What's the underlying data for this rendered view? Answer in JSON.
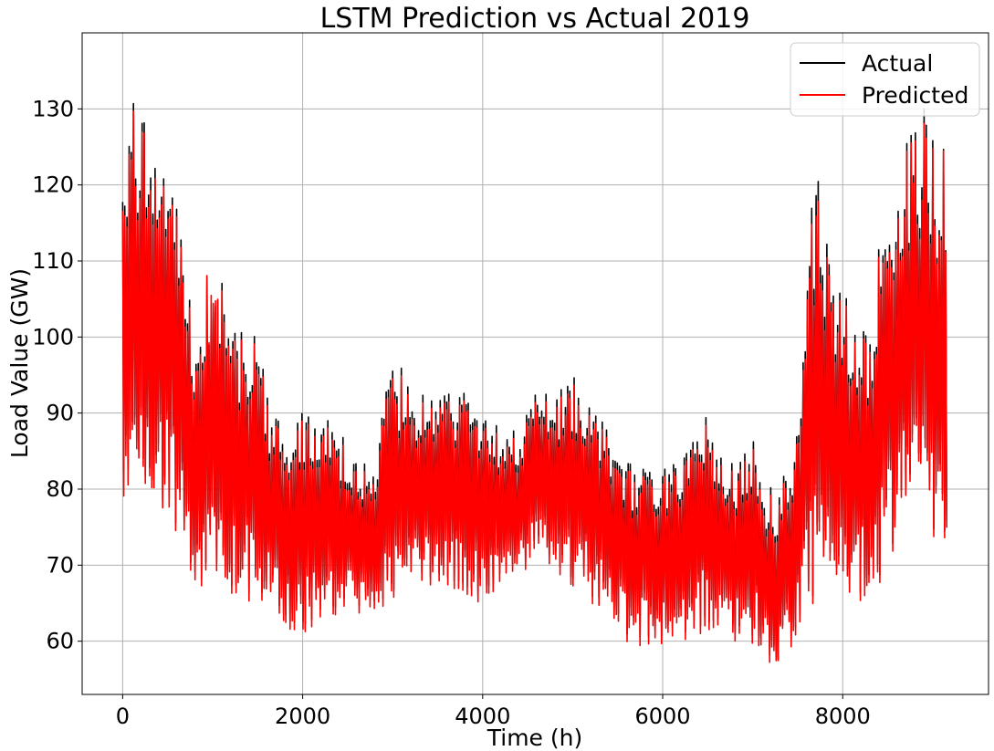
{
  "chart_data": {
    "type": "line",
    "title": "LSTM Prediction vs Actual 2019",
    "xlabel": "Time (h)",
    "ylabel": "Load Value (GW)",
    "xlim": [
      -450,
      9620
    ],
    "ylim": [
      53,
      140
    ],
    "xticks": [
      0,
      2000,
      4000,
      6000,
      8000
    ],
    "yticks": [
      60,
      70,
      80,
      90,
      100,
      110,
      120,
      130
    ],
    "grid": true,
    "legend_position": "top-right",
    "series": [
      {
        "name": "Actual",
        "color": "#000000",
        "x": [
          0,
          100,
          200,
          300,
          400,
          500,
          600,
          700,
          800,
          900,
          1000,
          1100,
          1200,
          1300,
          1400,
          1500,
          1600,
          1700,
          1800,
          1900,
          2000,
          2100,
          2200,
          2300,
          2400,
          2500,
          2600,
          2700,
          2800,
          2900,
          3000,
          3100,
          3200,
          3300,
          3400,
          3500,
          3600,
          3700,
          3800,
          3900,
          4000,
          4100,
          4200,
          4300,
          4400,
          4500,
          4600,
          4700,
          4800,
          4900,
          5000,
          5100,
          5200,
          5300,
          5400,
          5500,
          5600,
          5700,
          5800,
          5900,
          6000,
          6100,
          6200,
          6300,
          6400,
          6500,
          6600,
          6700,
          6800,
          6900,
          7000,
          7100,
          7200,
          7300,
          7400,
          7500,
          7600,
          7700,
          7800,
          7900,
          8000,
          8100,
          8200,
          8300,
          8400,
          8500,
          8600,
          8700,
          8800,
          8900,
          9000,
          9150
        ],
        "high": [
          120,
          132,
          127,
          135,
          122,
          126,
          118,
          109,
          101,
          105,
          114,
          108,
          104,
          101,
          102,
          99,
          95,
          90,
          88,
          89,
          91,
          91,
          90,
          89,
          88,
          87,
          86,
          84,
          84,
          91,
          98,
          96,
          94,
          93,
          92,
          93,
          95,
          94,
          93,
          91,
          90,
          89,
          88,
          89,
          89,
          90,
          96,
          95,
          94,
          93,
          96,
          94,
          92,
          91,
          88,
          86,
          84,
          83,
          83,
          83,
          84,
          84,
          85,
          86,
          87,
          94,
          87,
          86,
          84,
          85,
          89,
          82,
          81,
          80,
          87,
          88,
          105,
          127,
          114,
          108,
          107,
          104,
          103,
          102,
          112,
          119,
          118,
          126,
          129,
          131,
          126,
          126
        ],
        "low": [
          79,
          81,
          80,
          79,
          78,
          78,
          75,
          71,
          69,
          68,
          69,
          68,
          67,
          66,
          66,
          65,
          64,
          63,
          63,
          62,
          62,
          62,
          62,
          63,
          63,
          64,
          64,
          64,
          64,
          65,
          66,
          67,
          68,
          68,
          67,
          67,
          68,
          67,
          67,
          66,
          66,
          67,
          67,
          68,
          69,
          70,
          71,
          70,
          69,
          68,
          67,
          67,
          66,
          65,
          64,
          62,
          61,
          60,
          60,
          60,
          60,
          61,
          61,
          61,
          62,
          62,
          61,
          61,
          61,
          60,
          60,
          59,
          58,
          57,
          59,
          61,
          64,
          66,
          68,
          68,
          67,
          67,
          66,
          66,
          68,
          70,
          73,
          74,
          74,
          74,
          72,
          70
        ]
      },
      {
        "name": "Predicted",
        "color": "#ff0000",
        "x": [
          0,
          100,
          200,
          300,
          400,
          500,
          600,
          700,
          800,
          900,
          1000,
          1100,
          1200,
          1300,
          1400,
          1500,
          1600,
          1700,
          1800,
          1900,
          2000,
          2100,
          2200,
          2300,
          2400,
          2500,
          2600,
          2700,
          2800,
          2900,
          3000,
          3100,
          3200,
          3300,
          3400,
          3500,
          3600,
          3700,
          3800,
          3900,
          4000,
          4100,
          4200,
          4300,
          4400,
          4500,
          4600,
          4700,
          4800,
          4900,
          5000,
          5100,
          5200,
          5300,
          5400,
          5500,
          5600,
          5700,
          5800,
          5900,
          6000,
          6100,
          6200,
          6300,
          6400,
          6500,
          6600,
          6700,
          6800,
          6900,
          7000,
          7100,
          7200,
          7300,
          7400,
          7500,
          7600,
          7700,
          7800,
          7900,
          8000,
          8100,
          8200,
          8300,
          8400,
          8500,
          8600,
          8700,
          8800,
          8900,
          9000,
          9150
        ],
        "high": [
          119,
          131,
          126,
          133,
          121,
          125,
          117,
          108,
          100,
          104,
          116,
          107,
          103,
          100,
          101,
          98,
          94,
          89,
          87,
          88,
          90,
          90,
          89,
          88,
          87,
          86,
          85,
          83,
          83,
          90,
          97,
          95,
          93,
          92,
          91,
          92,
          94,
          93,
          92,
          90,
          89,
          88,
          87,
          88,
          88,
          89,
          95,
          94,
          93,
          92,
          95,
          93,
          91,
          90,
          87,
          85,
          83,
          82,
          82,
          82,
          83,
          83,
          84,
          85,
          86,
          93,
          86,
          85,
          83,
          84,
          88,
          81,
          80,
          79,
          86,
          87,
          104,
          124,
          112,
          107,
          106,
          103,
          102,
          101,
          111,
          118,
          117,
          125,
          128,
          129,
          125,
          126
        ],
        "low": [
          75,
          80,
          79,
          78,
          77,
          77,
          74,
          70,
          68,
          67,
          68,
          67,
          66,
          65,
          65,
          64,
          63,
          62,
          62,
          61,
          61,
          61,
          61,
          62,
          62,
          63,
          63,
          63,
          63,
          64,
          65,
          66,
          67,
          67,
          66,
          66,
          67,
          66,
          66,
          65,
          65,
          66,
          66,
          67,
          68,
          69,
          70,
          69,
          68,
          67,
          66,
          66,
          65,
          64,
          63,
          61,
          60,
          59,
          59,
          59,
          59,
          60,
          60,
          60,
          61,
          61,
          60,
          60,
          60,
          59,
          59,
          58,
          57,
          57,
          58,
          60,
          63,
          65,
          67,
          67,
          66,
          66,
          65,
          65,
          67,
          69,
          72,
          73,
          73,
          73,
          71,
          69
        ]
      }
    ]
  }
}
